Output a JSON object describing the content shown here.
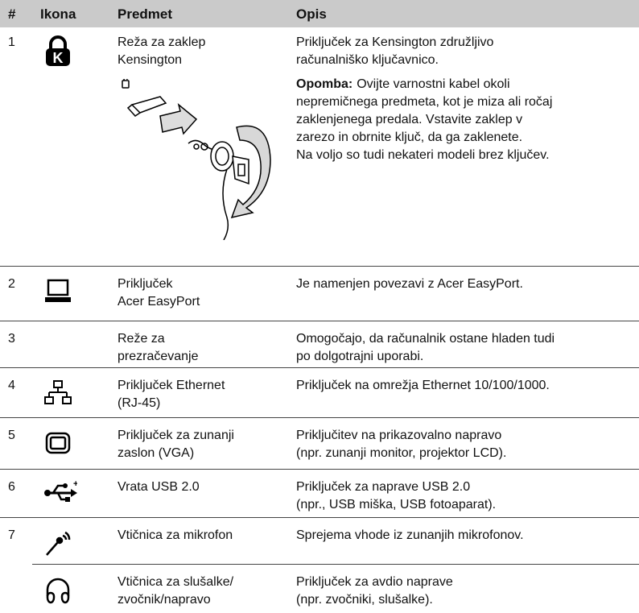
{
  "header": [
    "#",
    "Ikona",
    "Predmet",
    "Opis"
  ],
  "rows": [
    {
      "number": "1",
      "item": [
        "Reža za zaklep",
        "Kensington"
      ],
      "description": [
        "Priključek za Kensington združljivo",
        "računalniško ključavnico."
      ],
      "note_label": "Opomba:",
      "note": [
        "Ovijte varnostni kabel okoli",
        "nepremičnega predmeta, kot je miza ali ročaj",
        "zaklenjenega predala. Vstavite zaklep v",
        "zarezo in obrnite ključ, da ga zaklenete.",
        "Na voljo so tudi nekateri modeli brez ključev."
      ]
    },
    {
      "number": "2",
      "item": [
        "Priključek",
        "Acer EasyPort"
      ],
      "description": [
        "Je namenjen povezavi z Acer EasyPort."
      ]
    },
    {
      "number": "3",
      "item": [
        "Reže za",
        "prezračevanje"
      ],
      "description": [
        "Omogočajo, da računalnik ostane hladen tudi",
        "po dolgotrajni uporabi."
      ]
    },
    {
      "number": "4",
      "item": [
        "Priključek Ethernet",
        "(RJ-45)"
      ],
      "description": [
        "Priključek na omrežja Ethernet 10/100/1000."
      ]
    },
    {
      "number": "5",
      "item": [
        "Priključek za zunanji",
        "zaslon (VGA)"
      ],
      "description": [
        "Priključitev na prikazovalno napravo",
        "(npr. zunanji monitor, projektor LCD)."
      ]
    },
    {
      "number": "6",
      "item": [
        "Vrata USB 2.0"
      ],
      "description": [
        "Priključek za naprave USB 2.0",
        "(npr., USB miška, USB fotoaparat)."
      ]
    },
    {
      "number": "7",
      "item": [
        "Vtičnica za mikrofon"
      ],
      "description": [
        "Sprejema vhode iz zunanjih mikrofonov."
      ]
    },
    {
      "item": [
        "Vtičnica za slušalke/",
        "zvočnik/napravo"
      ],
      "description": [
        "Priključek za avdio naprave",
        "(npr. zvočniki, slušalke)."
      ]
    }
  ]
}
